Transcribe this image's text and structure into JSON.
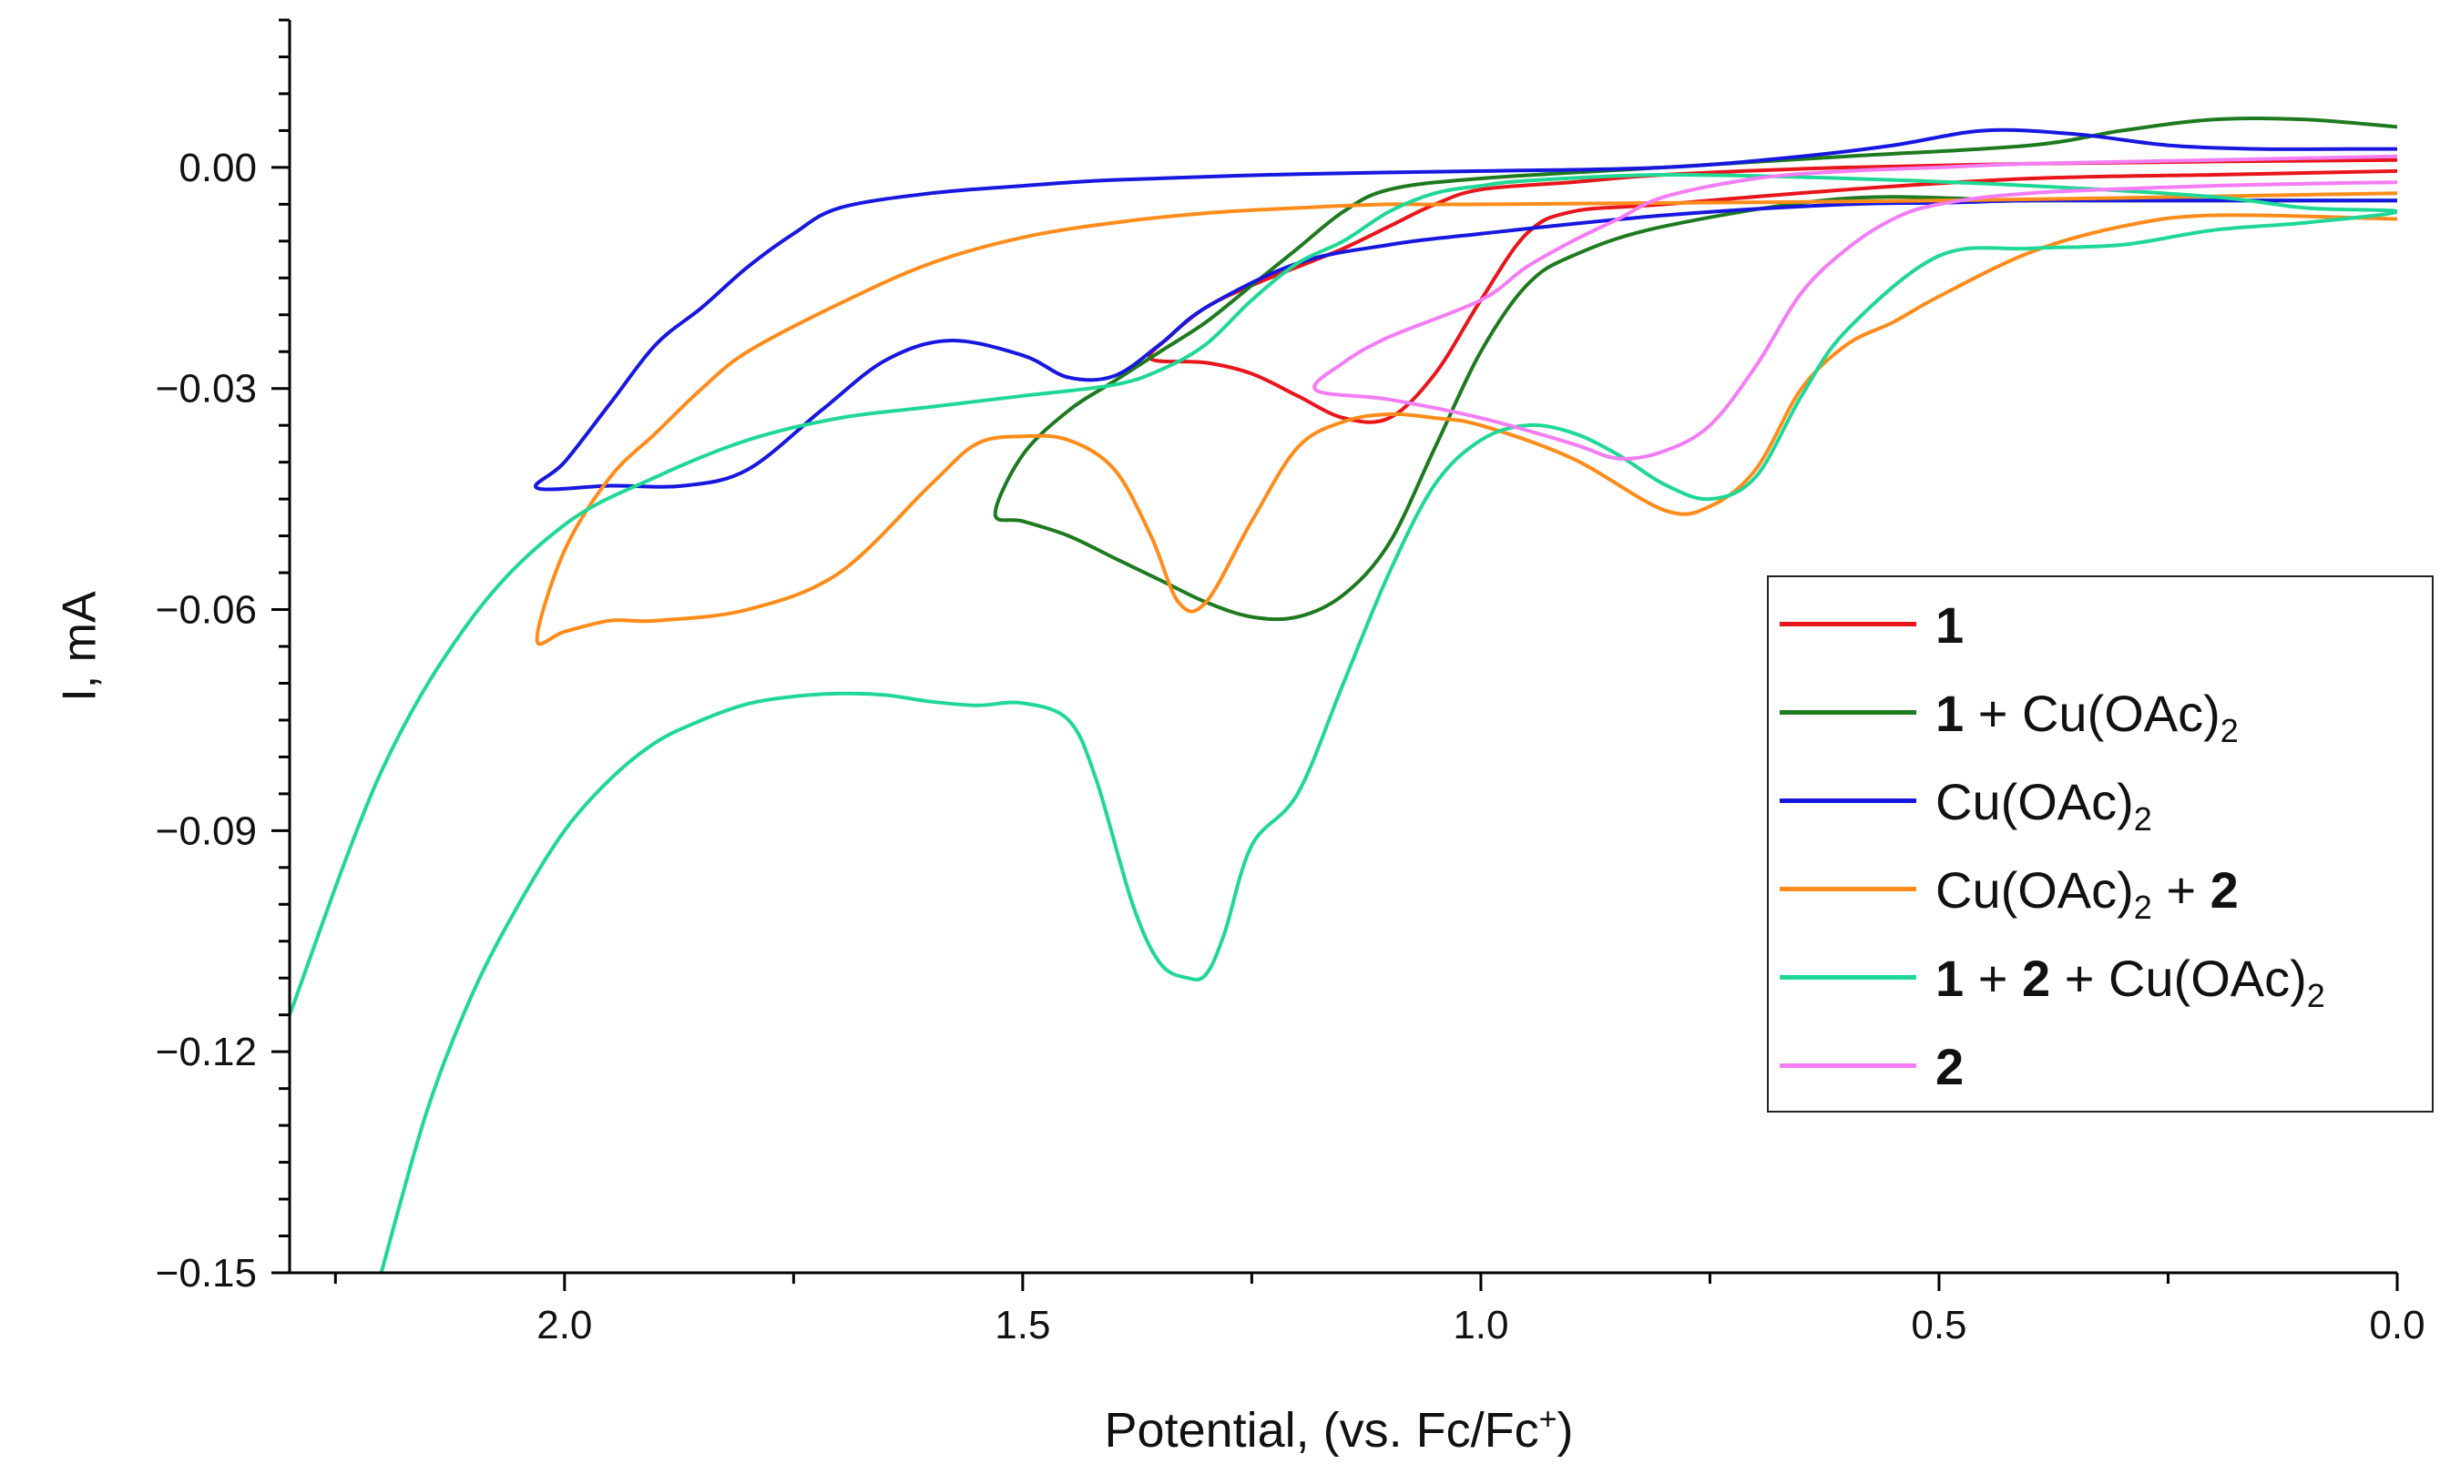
{
  "chart_data": {
    "type": "line",
    "title": "",
    "xlabel": "Potential, (vs. Fc/Fc",
    "xlabel_sup": "+",
    "xlabel_end": ")",
    "ylabel": "I, mA",
    "xlim": [
      2.3,
      0.0
    ],
    "ylim": [
      -0.15,
      0.02
    ],
    "x_ticks": [
      2.0,
      1.5,
      1.0,
      0.5,
      0.0
    ],
    "x_tick_labels": [
      "2.0",
      "1.5",
      "1.0",
      "0.5",
      "0.0"
    ],
    "y_ticks": [
      0.0,
      -0.03,
      -0.06,
      -0.09,
      -0.12,
      -0.15
    ],
    "y_tick_labels": [
      "0.00",
      "−0.03",
      "−0.06",
      "−0.09",
      "−0.12",
      "−0.15"
    ],
    "legend_position": "right",
    "series": [
      {
        "name": "1",
        "color": "#e8151b",
        "label_parts": [
          {
            "t": "1",
            "b": true
          }
        ],
        "x": [
          0.0,
          0.2,
          0.4,
          0.6,
          0.8,
          0.9,
          0.95,
          1.0,
          1.05,
          1.1,
          1.15,
          1.2,
          1.25,
          1.3,
          1.36,
          1.34,
          1.3,
          1.25,
          1.2,
          1.15,
          1.1,
          1.05,
          1.0,
          0.9,
          0.8,
          0.6,
          0.4,
          0.2,
          0.0
        ],
        "y": [
          -0.0005,
          -0.001,
          -0.0015,
          -0.003,
          -0.005,
          -0.006,
          -0.009,
          -0.018,
          -0.028,
          -0.034,
          -0.034,
          -0.031,
          -0.028,
          -0.0265,
          -0.026,
          -0.023,
          -0.019,
          -0.016,
          -0.0135,
          -0.011,
          -0.008,
          -0.005,
          -0.003,
          -0.002,
          -0.001,
          0.0,
          0.0005,
          0.0008,
          0.001
        ]
      },
      {
        "name": "1 + Cu(OAc)2",
        "color": "#1e7a1e",
        "label_parts": [
          {
            "t": "1",
            "b": true
          },
          {
            "t": " + Cu(OAc)"
          },
          {
            "t": "2",
            "sub": true
          }
        ],
        "x": [
          0.0,
          0.2,
          0.4,
          0.6,
          0.8,
          0.9,
          0.95,
          1.0,
          1.05,
          1.1,
          1.15,
          1.2,
          1.25,
          1.3,
          1.35,
          1.4,
          1.45,
          1.5,
          1.53,
          1.5,
          1.45,
          1.4,
          1.35,
          1.3,
          1.25,
          1.2,
          1.15,
          1.1,
          1.0,
          0.8,
          0.6,
          0.4,
          0.3,
          0.2,
          0.1,
          0.0
        ],
        "y": [
          -0.0045,
          -0.0045,
          -0.0045,
          -0.0042,
          -0.008,
          -0.012,
          -0.016,
          -0.025,
          -0.038,
          -0.051,
          -0.058,
          -0.061,
          -0.061,
          -0.059,
          -0.056,
          -0.053,
          -0.05,
          -0.048,
          -0.047,
          -0.039,
          -0.033,
          -0.029,
          -0.025,
          -0.021,
          -0.016,
          -0.011,
          -0.006,
          -0.003,
          -0.0015,
          0.0,
          0.0015,
          0.003,
          0.005,
          0.0065,
          0.0065,
          0.0055
        ]
      },
      {
        "name": "Cu(OAc)2",
        "color": "#1717e0",
        "label_parts": [
          {
            "t": "Cu(OAc)"
          },
          {
            "t": "2",
            "sub": true
          }
        ],
        "x": [
          0.0,
          0.1,
          0.2,
          0.3,
          0.4,
          0.5,
          0.6,
          0.8,
          1.0,
          1.1,
          1.2,
          1.3,
          1.35,
          1.4,
          1.45,
          1.5,
          1.58,
          1.65,
          1.72,
          1.8,
          1.87,
          1.95,
          2.03,
          2.0,
          1.95,
          1.9,
          1.85,
          1.8,
          1.75,
          1.7,
          1.6,
          1.5,
          1.4,
          1.2,
          1.0,
          0.8,
          0.65,
          0.55,
          0.45,
          0.35,
          0.25,
          0.15,
          0.05,
          0.0
        ],
        "y": [
          -0.0045,
          -0.0045,
          -0.0045,
          -0.0045,
          -0.0045,
          -0.0048,
          -0.005,
          -0.0065,
          -0.009,
          -0.0105,
          -0.013,
          -0.019,
          -0.024,
          -0.0283,
          -0.0285,
          -0.0255,
          -0.0235,
          -0.0262,
          -0.033,
          -0.041,
          -0.0432,
          -0.0432,
          -0.0435,
          -0.04,
          -0.032,
          -0.024,
          -0.019,
          -0.0135,
          -0.009,
          -0.0055,
          -0.0035,
          -0.0025,
          -0.0017,
          -0.0009,
          -0.0005,
          0.0,
          0.0015,
          0.003,
          0.005,
          0.0045,
          0.003,
          0.0025,
          0.0025,
          0.0025
        ]
      },
      {
        "name": "Cu(OAc)2 + 2",
        "color": "#ff8c1a",
        "label_parts": [
          {
            "t": "Cu(OAc)"
          },
          {
            "t": "2",
            "sub": true
          },
          {
            "t": " + "
          },
          {
            "t": "2",
            "b": true
          }
        ],
        "x": [
          0.0,
          0.2,
          0.3,
          0.4,
          0.5,
          0.55,
          0.6,
          0.65,
          0.7,
          0.75,
          0.8,
          0.9,
          1.0,
          1.05,
          1.1,
          1.15,
          1.2,
          1.25,
          1.3,
          1.33,
          1.36,
          1.4,
          1.45,
          1.5,
          1.55,
          1.6,
          1.7,
          1.8,
          1.9,
          1.95,
          2.0,
          2.03,
          2.0,
          1.95,
          1.9,
          1.85,
          1.8,
          1.7,
          1.6,
          1.5,
          1.4,
          1.3,
          1.2,
          1.1,
          1.0,
          0.5,
          0.0
        ],
        "y": [
          -0.007,
          -0.0065,
          -0.008,
          -0.0115,
          -0.0175,
          -0.021,
          -0.024,
          -0.03,
          -0.041,
          -0.046,
          -0.0465,
          -0.0395,
          -0.035,
          -0.034,
          -0.0335,
          -0.0345,
          -0.038,
          -0.048,
          -0.059,
          -0.059,
          -0.05,
          -0.041,
          -0.037,
          -0.0365,
          -0.0375,
          -0.043,
          -0.055,
          -0.06,
          -0.0615,
          -0.0615,
          -0.063,
          -0.064,
          -0.052,
          -0.042,
          -0.036,
          -0.03,
          -0.025,
          -0.0185,
          -0.013,
          -0.0095,
          -0.0075,
          -0.0062,
          -0.0055,
          -0.005,
          -0.005,
          -0.0045,
          -0.0035
        ]
      },
      {
        "name": "1 + 2 + Cu(OAc)2",
        "color": "#1fd895",
        "label_parts": [
          {
            "t": "1",
            "b": true
          },
          {
            "t": " + "
          },
          {
            "t": "2",
            "b": true
          },
          {
            "t": " + Cu(OAc)"
          },
          {
            "t": "2",
            "sub": true
          }
        ],
        "x": [
          2.2,
          2.15,
          2.1,
          2.05,
          2.0,
          1.95,
          1.9,
          1.85,
          1.8,
          1.75,
          1.7,
          1.65,
          1.6,
          1.55,
          1.5,
          1.45,
          1.42,
          1.38,
          1.35,
          1.32,
          1.3,
          1.28,
          1.25,
          1.2,
          1.15,
          1.1,
          1.05,
          1.0,
          0.95,
          0.9,
          0.85,
          0.8,
          0.75,
          0.7,
          0.65,
          0.6,
          0.5,
          0.4,
          0.3,
          0.2,
          0.1,
          0.0,
          0.1,
          0.2,
          0.4,
          0.6,
          0.8,
          0.95,
          1.0,
          1.05,
          1.1,
          1.15,
          1.2,
          1.25,
          1.3,
          1.35,
          1.4,
          1.5,
          1.6,
          1.7,
          1.8,
          1.9,
          2.0,
          2.1,
          2.2,
          2.3
        ],
        "y": [
          -0.15,
          -0.128,
          -0.112,
          -0.1,
          -0.09,
          -0.083,
          -0.078,
          -0.075,
          -0.0728,
          -0.0718,
          -0.0714,
          -0.0716,
          -0.0725,
          -0.073,
          -0.0727,
          -0.075,
          -0.083,
          -0.1,
          -0.108,
          -0.11,
          -0.1095,
          -0.104,
          -0.092,
          -0.085,
          -0.07,
          -0.055,
          -0.043,
          -0.037,
          -0.035,
          -0.036,
          -0.039,
          -0.043,
          -0.045,
          -0.042,
          -0.031,
          -0.022,
          -0.012,
          -0.011,
          -0.0105,
          -0.0085,
          -0.0075,
          -0.006,
          -0.0055,
          -0.004,
          -0.0025,
          -0.0015,
          -0.001,
          -0.0018,
          -0.0025,
          -0.0035,
          -0.006,
          -0.01,
          -0.013,
          -0.018,
          -0.024,
          -0.0275,
          -0.0295,
          -0.031,
          -0.0325,
          -0.034,
          -0.037,
          -0.042,
          -0.0485,
          -0.061,
          -0.082,
          -0.115
        ]
      },
      {
        "name": "2",
        "color": "#f47cf4",
        "label_parts": [
          {
            "t": "2",
            "b": true
          }
        ],
        "x": [
          0.0,
          0.2,
          0.4,
          0.5,
          0.55,
          0.6,
          0.65,
          0.7,
          0.75,
          0.8,
          0.85,
          0.9,
          1.0,
          1.1,
          1.18,
          1.15,
          1.1,
          1.0,
          0.95,
          0.9,
          0.85,
          0.8,
          0.7,
          0.6,
          0.5,
          0.4,
          0.2,
          0.0
        ],
        "y": [
          -0.002,
          -0.0025,
          -0.0035,
          -0.005,
          -0.007,
          -0.011,
          -0.017,
          -0.027,
          -0.035,
          -0.0385,
          -0.0395,
          -0.0375,
          -0.034,
          -0.0315,
          -0.0302,
          -0.0265,
          -0.023,
          -0.018,
          -0.0135,
          -0.01,
          -0.007,
          -0.004,
          -0.0015,
          -0.0005,
          0.0,
          0.0005,
          0.001,
          0.0015
        ]
      }
    ]
  }
}
